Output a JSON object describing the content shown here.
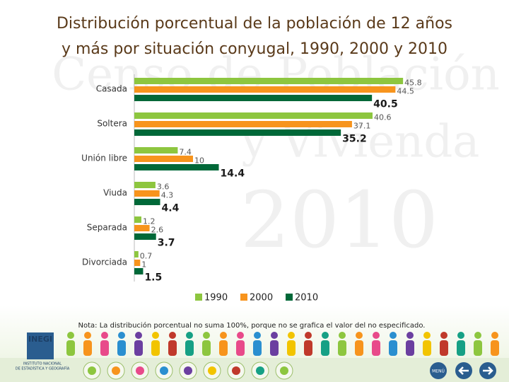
{
  "chart_data": {
    "type": "bar",
    "orientation": "horizontal",
    "title": "Distribución porcentual de la población de 12 años y más por situación conyugal, 1990, 2000 y 2010",
    "categories": [
      "Casada",
      "Soltera",
      "Unión libre",
      "Viuda",
      "Separada",
      "Divorciada"
    ],
    "series": [
      {
        "name": "1990",
        "color": "#8dc63f",
        "values": [
          45.8,
          40.6,
          7.4,
          3.6,
          1.2,
          0.7
        ]
      },
      {
        "name": "2000",
        "color": "#f7941d",
        "values": [
          44.5,
          37.1,
          10.0,
          4.3,
          2.6,
          1.0
        ]
      },
      {
        "name": "2010",
        "color": "#006838",
        "values": [
          40.5,
          35.2,
          14.4,
          4.4,
          3.7,
          1.5
        ]
      }
    ],
    "note": "Nota: La distribución porcentual no suma 100%, porque no se grafica el valor del no especificado."
  },
  "watermark": [
    "Censo de Población",
    "y Vivienda",
    "2010"
  ],
  "footer": {
    "logo": "INEGI",
    "institute": [
      "INSTITUTO NACIONAL",
      "DE ESTADÍSTICA Y GEOGRAFÍA"
    ],
    "menu": "MENÚ"
  }
}
